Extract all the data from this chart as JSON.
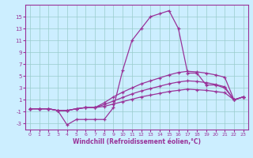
{
  "x": [
    0,
    1,
    2,
    3,
    4,
    5,
    6,
    7,
    8,
    9,
    10,
    11,
    12,
    13,
    14,
    15,
    16,
    17,
    18,
    19,
    20,
    21,
    22,
    23
  ],
  "line1": [
    -0.5,
    -0.5,
    -0.5,
    -0.8,
    -3.2,
    -2.3,
    -2.3,
    -2.3,
    -2.3,
    -0.3,
    6.0,
    11.0,
    13.0,
    15.0,
    15.5,
    16.0,
    13.0,
    5.5,
    5.5,
    3.5,
    3.5,
    3.0,
    1.0,
    1.5
  ],
  "line2": [
    -0.5,
    -0.5,
    -0.5,
    -0.8,
    -0.8,
    -0.5,
    -0.3,
    -0.3,
    0.5,
    1.5,
    2.3,
    3.0,
    3.7,
    4.2,
    4.7,
    5.2,
    5.6,
    5.8,
    5.7,
    5.5,
    5.2,
    4.8,
    1.0,
    1.5
  ],
  "line3": [
    -0.5,
    -0.5,
    -0.5,
    -0.8,
    -0.8,
    -0.5,
    -0.3,
    -0.3,
    0.2,
    0.8,
    1.4,
    2.0,
    2.5,
    2.9,
    3.3,
    3.7,
    4.0,
    4.2,
    4.1,
    3.9,
    3.6,
    3.2,
    1.0,
    1.5
  ],
  "line4": [
    -0.5,
    -0.5,
    -0.5,
    -0.8,
    -0.8,
    -0.5,
    -0.3,
    -0.3,
    -0.1,
    0.3,
    0.7,
    1.1,
    1.5,
    1.8,
    2.1,
    2.4,
    2.6,
    2.8,
    2.7,
    2.6,
    2.4,
    2.2,
    1.0,
    1.5
  ],
  "color": "#993399",
  "bg_color": "#cceeff",
  "grid_color": "#99cccc",
  "ylim": [
    -4,
    17
  ],
  "yticks": [
    -3,
    -1,
    1,
    3,
    5,
    7,
    9,
    11,
    13,
    15
  ],
  "xticks": [
    0,
    1,
    2,
    3,
    4,
    5,
    6,
    7,
    8,
    9,
    10,
    11,
    12,
    13,
    14,
    15,
    16,
    17,
    18,
    19,
    20,
    21,
    22,
    23
  ],
  "xlabel": "Windchill (Refroidissement éolien,°C)",
  "marker": "+",
  "markersize": 3,
  "linewidth": 0.9
}
